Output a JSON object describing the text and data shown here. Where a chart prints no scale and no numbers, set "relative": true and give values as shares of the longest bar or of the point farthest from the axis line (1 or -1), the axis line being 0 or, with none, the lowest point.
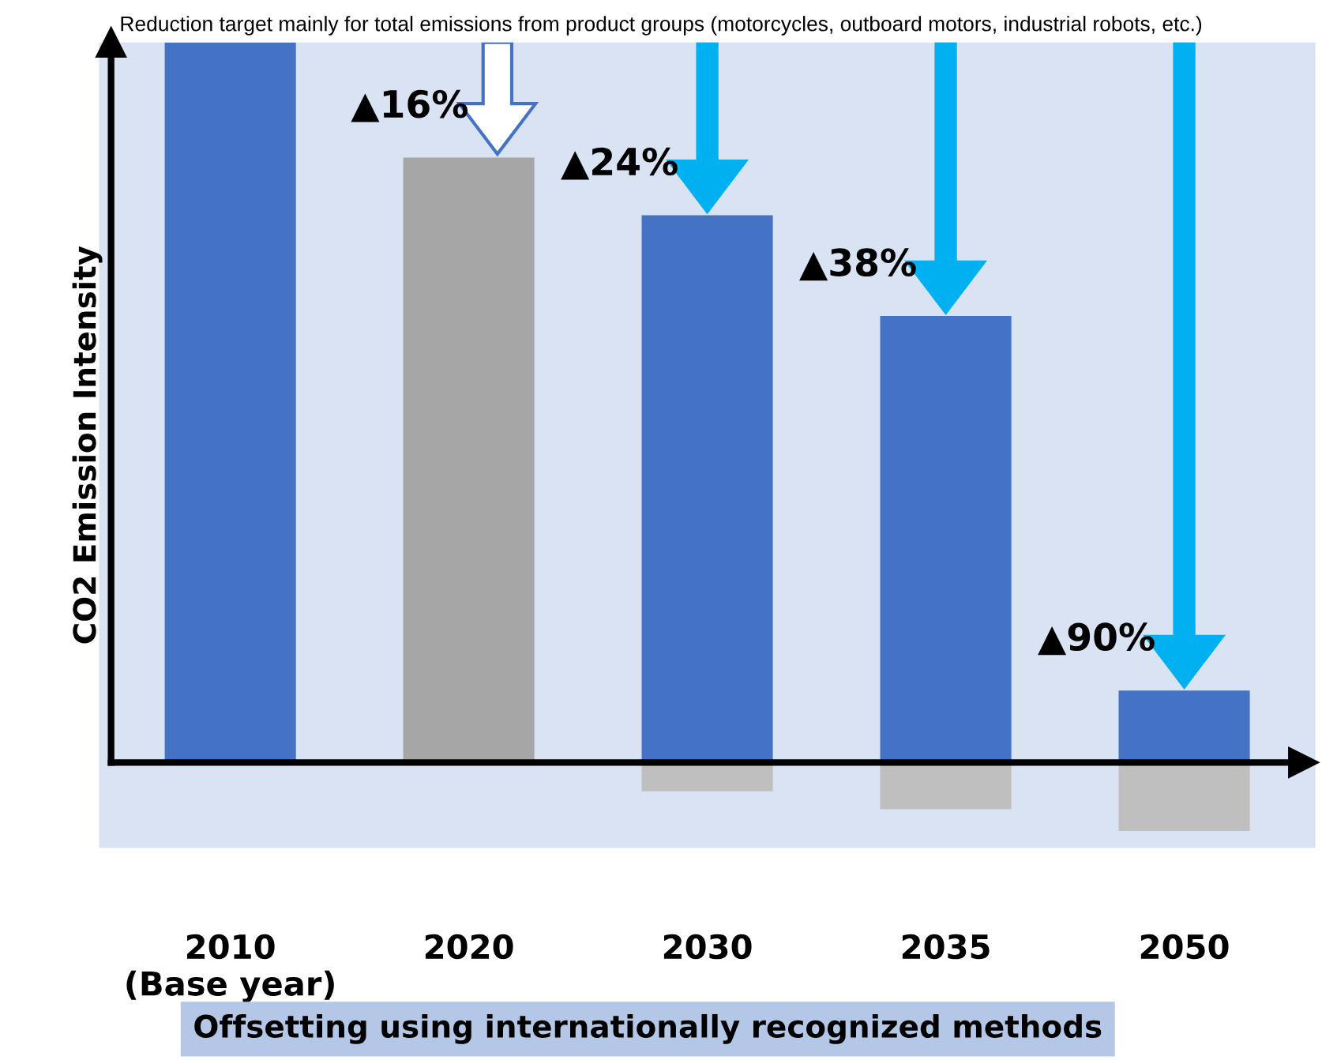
{
  "chart_data": {
    "type": "bar",
    "relative": true,
    "title": "Reduction target mainly for total emissions from product groups (motorcycles, outboard motors, industrial robots, etc.)",
    "ylabel": "CO2 Emission Intensity",
    "categories": [
      "2010\n(Base year)",
      "2020",
      "2030",
      "2035",
      "2050"
    ],
    "series": [
      {
        "values": [
          1,
          0.84,
          0.76,
          0.62,
          0.1
        ],
        "colors": [
          "#4472c4",
          "#a6a6a6",
          "#4472c4",
          "#4472c4",
          "#4472c4"
        ]
      },
      {
        "values": [
          null,
          null,
          -0.04,
          -0.065,
          -0.095
        ],
        "color": "#bfbfbf"
      }
    ],
    "annotations": [
      {
        "text": "▲16%",
        "x": "2020",
        "y": 0.84
      },
      {
        "text": "▲24%",
        "x": "2030",
        "y": 0.76
      },
      {
        "text": "▲38%",
        "x": "2035",
        "y": 0.62
      },
      {
        "text": "▲90%",
        "x": "2050",
        "y": 0.1
      },
      "Offsetting using internationally recognized methods"
    ],
    "stacked": true,
    "grid": false,
    "legend": false
  }
}
